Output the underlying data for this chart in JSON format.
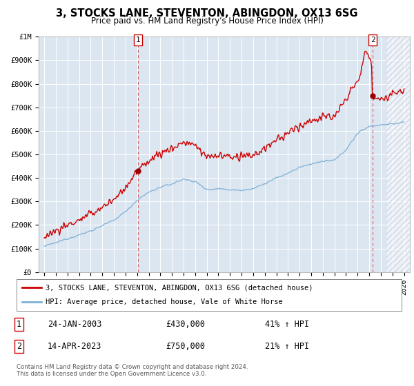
{
  "title": "3, STOCKS LANE, STEVENTON, ABINGDON, OX13 6SG",
  "subtitle": "Price paid vs. HM Land Registry's House Price Index (HPI)",
  "legend_line1": "3, STOCKS LANE, STEVENTON, ABINGDON, OX13 6SG (detached house)",
  "legend_line2": "HPI: Average price, detached house, Vale of White Horse",
  "footnote": "Contains HM Land Registry data © Crown copyright and database right 2024.\nThis data is licensed under the Open Government Licence v3.0.",
  "sale1_date": "24-JAN-2003",
  "sale1_price": "£430,000",
  "sale1_hpi": "41% ↑ HPI",
  "sale2_date": "14-APR-2023",
  "sale2_price": "£750,000",
  "sale2_hpi": "21% ↑ HPI",
  "sale1_year": 2003.07,
  "sale1_value": 430000,
  "sale2_year": 2023.29,
  "sale2_value": 750000,
  "hpi_color": "#7bafd4",
  "price_color": "#cc0000",
  "bg_color": "#dce6f1",
  "ylim_max": 1000000,
  "yticks": [
    0,
    100000,
    200000,
    300000,
    400000,
    500000,
    600000,
    700000,
    800000,
    900000,
    1000000
  ],
  "ytick_labels": [
    "£0",
    "£100K",
    "£200K",
    "£300K",
    "£400K",
    "£500K",
    "£600K",
    "£700K",
    "£800K",
    "£900K",
    "£1M"
  ],
  "xlim_min": 1994.5,
  "xlim_max": 2026.5,
  "xticks": [
    1995,
    1996,
    1997,
    1998,
    1999,
    2000,
    2001,
    2002,
    2003,
    2004,
    2005,
    2006,
    2007,
    2008,
    2009,
    2010,
    2011,
    2012,
    2013,
    2014,
    2015,
    2016,
    2017,
    2018,
    2019,
    2020,
    2021,
    2022,
    2023,
    2024,
    2025,
    2026
  ],
  "hatch_start": 2024.5,
  "future_hatch_color": "#b0bcd0"
}
